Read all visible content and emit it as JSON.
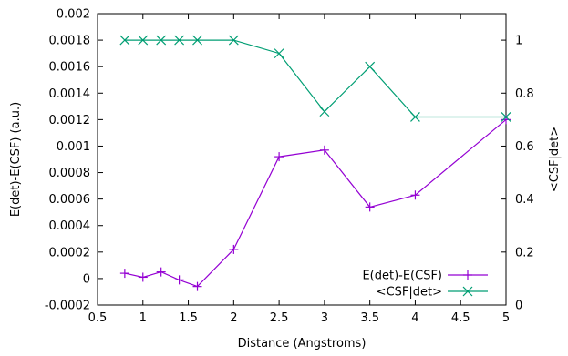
{
  "chart_data": {
    "type": "line",
    "xlabel": "Distance (Angstroms)",
    "ylabel": "E(det)-E(CSF) (a.u.)",
    "y2label": "<CSF|det>",
    "xlim": [
      0.5,
      5
    ],
    "ylim": [
      -0.0002,
      0.002
    ],
    "y2lim": [
      0,
      1.1
    ],
    "x_ticks": [
      "0.5",
      "1",
      "1.5",
      "2",
      "2.5",
      "3",
      "3.5",
      "4",
      "4.5",
      "5"
    ],
    "y_ticks": [
      "-0.0002",
      "0",
      "0.0002",
      "0.0004",
      "0.0006",
      "0.0008",
      "0.001",
      "0.0012",
      "0.0014",
      "0.0016",
      "0.0018",
      "0.002"
    ],
    "y2_ticks": [
      "0",
      "0.2",
      "0.4",
      "0.6",
      "0.8",
      "1"
    ],
    "grid": false,
    "legend_position": "bottom-right",
    "series": [
      {
        "name": "E(det)-E(CSF)",
        "axis": "left",
        "color": "#9400d3",
        "marker": "plus",
        "x": [
          0.8,
          1.0,
          1.2,
          1.4,
          1.6,
          2.0,
          2.5,
          3.0,
          3.5,
          4.0,
          5.0
        ],
        "y": [
          4e-05,
          1e-05,
          5e-05,
          -1e-05,
          -6e-05,
          0.00022,
          0.00092,
          0.00097,
          0.00054,
          0.00063,
          0.0012
        ]
      },
      {
        "name": "<CSF|det>",
        "axis": "right",
        "color": "#009e73",
        "marker": "cross",
        "x": [
          0.8,
          1.0,
          1.2,
          1.4,
          1.6,
          2.0,
          2.5,
          3.0,
          3.5,
          4.0,
          5.0
        ],
        "y": [
          1.0,
          1.0,
          1.0,
          1.0,
          1.0,
          1.0,
          0.95,
          0.73,
          0.9,
          0.71,
          0.71
        ]
      }
    ]
  }
}
